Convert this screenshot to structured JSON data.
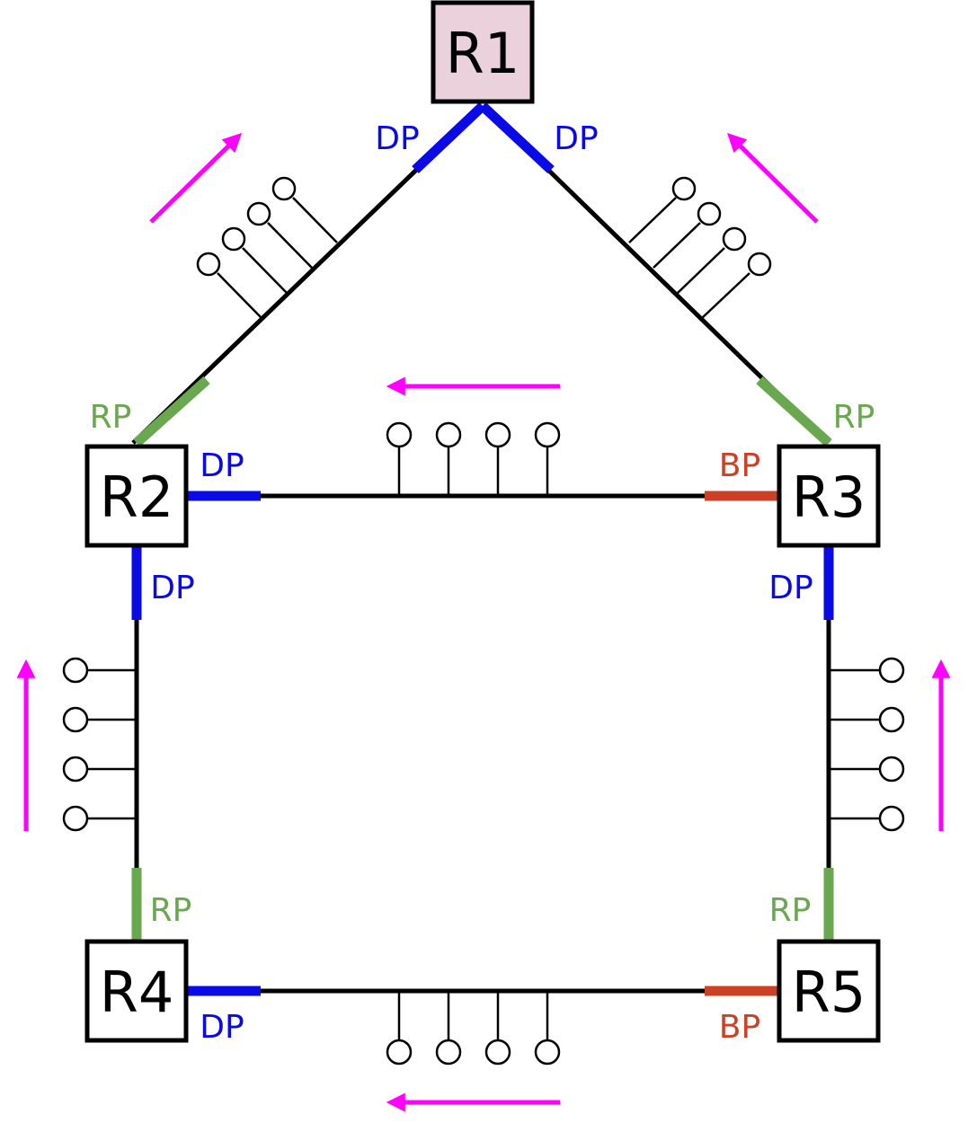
{
  "colors": {
    "designated_port": "#0a0ae6",
    "root_port": "#6aa84f",
    "blocked_port": "#cc4125",
    "flow_arrow": "#ff00ff",
    "root_bridge_fill": "#ead1dc",
    "router_fill": "#ffffff"
  },
  "routers": {
    "r1": {
      "label": "R1",
      "role": "root"
    },
    "r2": {
      "label": "R2"
    },
    "r3": {
      "label": "R3"
    },
    "r4": {
      "label": "R4"
    },
    "r5": {
      "label": "R5"
    }
  },
  "ports": {
    "r1_left": {
      "label": "DP",
      "type": "designated"
    },
    "r1_right": {
      "label": "DP",
      "type": "designated"
    },
    "r2_up": {
      "label": "RP",
      "type": "root"
    },
    "r2_right": {
      "label": "DP",
      "type": "designated"
    },
    "r2_down": {
      "label": "DP",
      "type": "designated"
    },
    "r3_up": {
      "label": "RP",
      "type": "root"
    },
    "r3_left": {
      "label": "BP",
      "type": "blocked"
    },
    "r3_down": {
      "label": "DP",
      "type": "designated"
    },
    "r4_up": {
      "label": "RP",
      "type": "root"
    },
    "r4_right": {
      "label": "DP",
      "type": "designated"
    },
    "r5_up": {
      "label": "RP",
      "type": "root"
    },
    "r5_left": {
      "label": "BP",
      "type": "blocked"
    }
  },
  "links": [
    {
      "from": "R1",
      "to": "R2",
      "hosts": 4
    },
    {
      "from": "R1",
      "to": "R3",
      "hosts": 4
    },
    {
      "from": "R2",
      "to": "R3",
      "hosts": 4
    },
    {
      "from": "R2",
      "to": "R4",
      "hosts": 4
    },
    {
      "from": "R3",
      "to": "R5",
      "hosts": 4
    },
    {
      "from": "R4",
      "to": "R5",
      "hosts": 4
    }
  ],
  "flow_arrows": [
    {
      "segment": "R1-R2",
      "direction": "toward R1"
    },
    {
      "segment": "R1-R3",
      "direction": "toward R1"
    },
    {
      "segment": "R2-R3",
      "direction": "toward R2"
    },
    {
      "segment": "R2-R4",
      "direction": "toward R2"
    },
    {
      "segment": "R3-R5",
      "direction": "toward R3"
    },
    {
      "segment": "R4-R5",
      "direction": "toward R4"
    }
  ]
}
